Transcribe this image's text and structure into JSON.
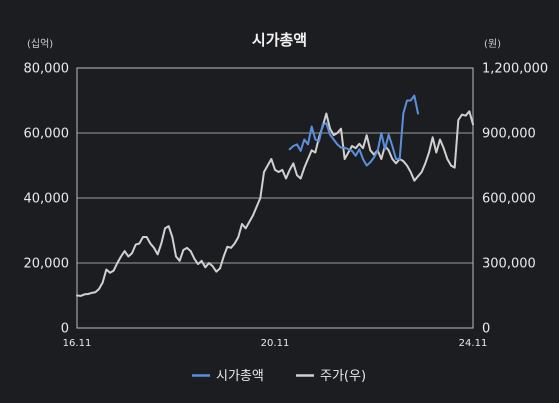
{
  "chart_data": {
    "type": "line",
    "title": "시가총액",
    "y_left_unit": "(십억)",
    "y_right_unit": "(원)",
    "y_left_ticks": [
      "0",
      "20,000",
      "40,000",
      "60,000",
      "80,000"
    ],
    "y_right_ticks": [
      "0",
      "300,000",
      "600,000",
      "900,000",
      "1,200,000"
    ],
    "ylim_left": [
      0,
      80000
    ],
    "ylim_right": [
      0,
      1200000
    ],
    "x_tick_labels": [
      "16.11",
      "20.11",
      "24.11"
    ],
    "x_tick_positions": [
      0,
      48,
      96
    ],
    "xlim": [
      0,
      96
    ],
    "grid": "horizontal",
    "legend_position": "bottom",
    "series": [
      {
        "name": "시가총액",
        "axis": "left",
        "color": "#5b8fd9",
        "start_index": 58,
        "values": [
          55000,
          56000,
          56500,
          54500,
          58000,
          56500,
          62000,
          58000,
          57500,
          62500,
          63000,
          59500,
          58000,
          56500,
          55500,
          55500,
          55000,
          54500,
          53000,
          55000,
          52000,
          50000,
          51000,
          52500,
          54500,
          60000,
          55000,
          59500,
          56000,
          52000,
          52000,
          66000,
          70000,
          70000,
          71500,
          66000
        ]
      },
      {
        "name": "주가(우)",
        "axis": "right",
        "color": "#d0d0d0",
        "start_index": 0,
        "values": [
          150000,
          148000,
          155000,
          157000,
          162000,
          165000,
          180000,
          210000,
          270000,
          255000,
          265000,
          300000,
          330000,
          355000,
          330000,
          345000,
          385000,
          390000,
          420000,
          420000,
          390000,
          370000,
          340000,
          390000,
          460000,
          470000,
          420000,
          330000,
          310000,
          360000,
          370000,
          355000,
          320000,
          295000,
          310000,
          280000,
          300000,
          285000,
          260000,
          275000,
          330000,
          375000,
          370000,
          390000,
          420000,
          480000,
          460000,
          490000,
          520000,
          560000,
          600000,
          720000,
          750000,
          780000,
          730000,
          720000,
          730000,
          690000,
          730000,
          760000,
          705000,
          690000,
          740000,
          780000,
          820000,
          810000,
          880000,
          930000,
          990000,
          920000,
          890000,
          900000,
          920000,
          780000,
          810000,
          840000,
          830000,
          850000,
          830000,
          890000,
          820000,
          800000,
          820000,
          780000,
          840000,
          820000,
          780000,
          760000,
          780000,
          770000,
          750000,
          720000,
          680000,
          700000,
          720000,
          760000,
          810000,
          880000,
          810000,
          870000,
          830000,
          780000,
          750000,
          740000,
          960000,
          985000,
          980000,
          1000000,
          940000
        ]
      }
    ]
  }
}
